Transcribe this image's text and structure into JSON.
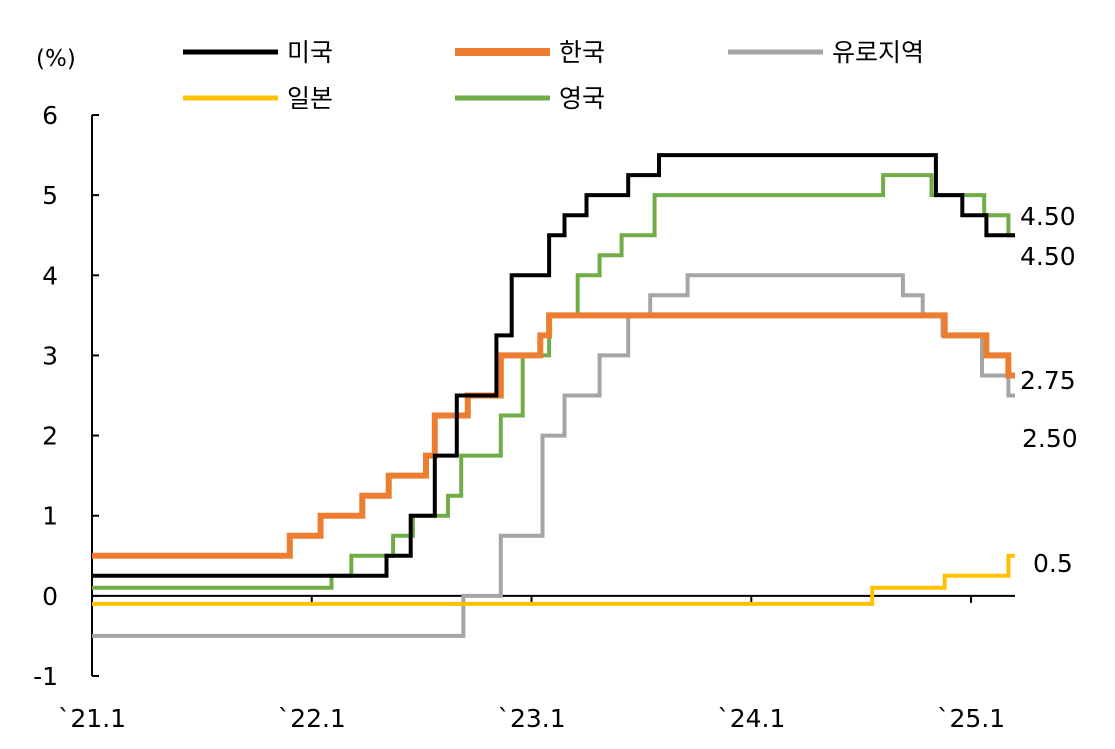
{
  "chart_data": {
    "type": "line",
    "ylabel": "(%)",
    "ylim": [
      -1,
      6
    ],
    "yticks": [
      "6",
      "5",
      "4",
      "3",
      "2",
      "1",
      "0",
      "-1"
    ],
    "ytick_values": [
      6,
      5,
      4,
      3,
      2,
      1,
      0,
      -1
    ],
    "xlim": [
      2021.0,
      2025.2
    ],
    "xticks": [
      "`21.1",
      "`22.1",
      "`23.1",
      "`24.1",
      "`25.1"
    ],
    "xtick_values": [
      2021.0,
      2022.0,
      2023.0,
      2024.0,
      2025.0
    ],
    "legend_placement": "top",
    "end_labels": [
      {
        "text": "4.50",
        "value": 4.5
      },
      {
        "text": "4.50",
        "value": 4.5
      },
      {
        "text": "2.75",
        "value": 2.75
      },
      {
        "text": "2.50",
        "value": 2.5
      },
      {
        "text": "0.5",
        "value": 0.5
      }
    ],
    "series": [
      {
        "name": "미국",
        "color": "#000000",
        "x": [
          2021.0,
          2022.17,
          2022.34,
          2022.45,
          2022.56,
          2022.66,
          2022.84,
          2022.91,
          2023.08,
          2023.15,
          2023.25,
          2023.44,
          2023.58,
          2024.72,
          2024.84,
          2024.96,
          2025.07
        ],
        "y": [
          0.25,
          0.25,
          0.5,
          1.0,
          1.75,
          2.5,
          3.25,
          4.0,
          4.5,
          4.75,
          5.0,
          5.25,
          5.5,
          5.5,
          5.0,
          4.75,
          4.5
        ]
      },
      {
        "name": "한국",
        "color": "#ED7D31",
        "x": [
          2021.0,
          2021.58,
          2021.9,
          2022.04,
          2022.23,
          2022.35,
          2022.52,
          2022.56,
          2022.71,
          2022.86,
          2023.04,
          2023.08,
          2024.78,
          2024.88,
          2025.07,
          2025.17
        ],
        "y": [
          0.5,
          0.5,
          0.75,
          1.0,
          1.25,
          1.5,
          1.75,
          2.25,
          2.5,
          3.0,
          3.25,
          3.5,
          3.5,
          3.25,
          3.0,
          2.75
        ]
      },
      {
        "name": "유로지역",
        "color": "#A5A5A5",
        "x": [
          2021.0,
          2022.52,
          2022.69,
          2022.86,
          2023.05,
          2023.15,
          2023.31,
          2023.44,
          2023.54,
          2023.62,
          2023.71,
          2024.43,
          2024.69,
          2024.78,
          2024.87,
          2025.05,
          2025.17
        ],
        "y": [
          -0.5,
          -0.5,
          0.0,
          0.75,
          2.0,
          2.5,
          3.0,
          3.5,
          3.75,
          3.75,
          4.0,
          4.0,
          3.75,
          3.5,
          3.25,
          2.75,
          2.5
        ]
      },
      {
        "name": "일본",
        "color": "#FFC000",
        "x": [
          2021.0,
          2024.21,
          2024.55,
          2024.88,
          2025.17
        ],
        "y": [
          -0.1,
          -0.1,
          0.1,
          0.25,
          0.5
        ]
      },
      {
        "name": "영국",
        "color": "#70AD47",
        "x": [
          2021.0,
          2021.92,
          2022.09,
          2022.18,
          2022.37,
          2022.46,
          2022.62,
          2022.68,
          2022.86,
          2022.96,
          2023.08,
          2023.21,
          2023.31,
          2023.41,
          2023.56,
          2024.6,
          2024.82,
          2025.06,
          2025.17
        ],
        "y": [
          0.1,
          0.1,
          0.25,
          0.5,
          0.75,
          1.0,
          1.25,
          1.75,
          2.25,
          3.0,
          3.5,
          4.0,
          4.25,
          4.5,
          5.0,
          5.25,
          5.0,
          4.75,
          4.5
        ]
      }
    ]
  }
}
